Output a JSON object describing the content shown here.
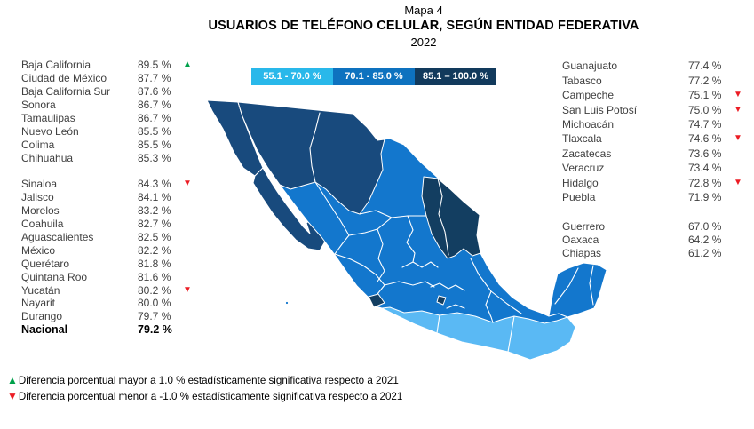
{
  "title": {
    "map_label": "Mapa 4",
    "main": "USUARIOS DE TELÉFONO CELULAR, SEGÚN ENTIDAD FEDERATIVA",
    "year": "2022"
  },
  "legend": {
    "items": [
      {
        "label": "55.1 - 70.0 %",
        "color": "#29b8ea"
      },
      {
        "label": "70.1 - 85.0 %",
        "color": "#0e72bf"
      },
      {
        "label": "85.1 – 100.0 %",
        "color": "#123a5c"
      }
    ]
  },
  "markers": {
    "up_color": "#00a14b",
    "down_color": "#ec1c24"
  },
  "map": {
    "colors": {
      "high_northwest": "#184a7d",
      "high_northeast": "#133e61",
      "mid": "#1377cd",
      "low": "#5ab9f4"
    }
  },
  "lists": {
    "left": {
      "groups": [
        [
          {
            "name": "Baja California",
            "value": "89.5 %",
            "marker": "up"
          },
          {
            "name": "Ciudad de México",
            "value": "87.7 %"
          },
          {
            "name": "Baja California Sur",
            "value": "87.6 %"
          },
          {
            "name": "Sonora",
            "value": "86.7 %"
          },
          {
            "name": "Tamaulipas",
            "value": "86.7 %"
          },
          {
            "name": "Nuevo León",
            "value": "85.5 %"
          },
          {
            "name": "Colima",
            "value": "85.5 %"
          },
          {
            "name": "Chihuahua",
            "value": "85.3 %"
          }
        ],
        [
          {
            "name": "Sinaloa",
            "value": "84.3 %",
            "marker": "down"
          },
          {
            "name": "Jalisco",
            "value": "84.1 %"
          },
          {
            "name": "Morelos",
            "value": "83.2 %"
          },
          {
            "name": "Coahuila",
            "value": "82.7 %"
          },
          {
            "name": "Aguascalientes",
            "value": "82.5 %"
          },
          {
            "name": "México",
            "value": "82.2 %"
          },
          {
            "name": "Querétaro",
            "value": "81.8 %"
          },
          {
            "name": "Quintana Roo",
            "value": "81.6 %"
          },
          {
            "name": "Yucatán",
            "value": "80.2 %",
            "marker": "down"
          },
          {
            "name": "Nayarit",
            "value": "80.0 %"
          },
          {
            "name": "Durango",
            "value": "79.7 %"
          },
          {
            "name": "Nacional",
            "value": "79.2 %",
            "bold": true
          }
        ]
      ]
    },
    "right": {
      "groups": [
        [
          {
            "name": "Guanajuato",
            "value": "77.4 %"
          },
          {
            "name": "Tabasco",
            "value": "77.2 %"
          },
          {
            "name": "Campeche",
            "value": "75.1 %",
            "marker": "down"
          },
          {
            "name": "San Luis Potosí",
            "value": "75.0 %",
            "marker": "down"
          },
          {
            "name": "Michoacán",
            "value": "74.7 %"
          },
          {
            "name": "Tlaxcala",
            "value": "74.6 %",
            "marker": "down"
          },
          {
            "name": "Zacatecas",
            "value": "73.6 %"
          },
          {
            "name": "Veracruz",
            "value": "73.4 %"
          },
          {
            "name": "Hidalgo",
            "value": "72.8 %",
            "marker": "down"
          },
          {
            "name": "Puebla",
            "value": "71.9 %"
          }
        ],
        [
          {
            "name": "Guerrero",
            "value": "67.0 %"
          },
          {
            "name": "Oaxaca",
            "value": "64.2 %"
          },
          {
            "name": "Chiapas",
            "value": "61.2 %"
          }
        ]
      ]
    }
  },
  "footnotes": [
    {
      "marker": "up",
      "text": "Diferencia porcentual mayor a 1.0 % estadísticamente significativa respecto a 2021"
    },
    {
      "marker": "down",
      "text": "Diferencia porcentual menor a -1.0 % estadísticamente significativa respecto a 2021"
    }
  ],
  "chart_data": {
    "type": "choropleth",
    "title": "Mapa 4",
    "subtitle": "USUARIOS DE TELÉFONO CELULAR, SEGÚN ENTIDAD FEDERATIVA",
    "year": "2022",
    "unit": "%",
    "bins": [
      {
        "label": "55.1 - 70.0 %",
        "color": "#29b8ea"
      },
      {
        "label": "70.1 - 85.0 %",
        "color": "#0e72bf"
      },
      {
        "label": "85.1 – 100.0 %",
        "color": "#123a5c"
      }
    ],
    "national": 79.2,
    "states": [
      {
        "name": "Baja California",
        "value": 89.5,
        "change_marker": "up"
      },
      {
        "name": "Ciudad de México",
        "value": 87.7
      },
      {
        "name": "Baja California Sur",
        "value": 87.6
      },
      {
        "name": "Sonora",
        "value": 86.7
      },
      {
        "name": "Tamaulipas",
        "value": 86.7
      },
      {
        "name": "Nuevo León",
        "value": 85.5
      },
      {
        "name": "Colima",
        "value": 85.5
      },
      {
        "name": "Chihuahua",
        "value": 85.3
      },
      {
        "name": "Sinaloa",
        "value": 84.3,
        "change_marker": "down"
      },
      {
        "name": "Jalisco",
        "value": 84.1
      },
      {
        "name": "Morelos",
        "value": 83.2
      },
      {
        "name": "Coahuila",
        "value": 82.7
      },
      {
        "name": "Aguascalientes",
        "value": 82.5
      },
      {
        "name": "México",
        "value": 82.2
      },
      {
        "name": "Querétaro",
        "value": 81.8
      },
      {
        "name": "Quintana Roo",
        "value": 81.6
      },
      {
        "name": "Yucatán",
        "value": 80.2,
        "change_marker": "down"
      },
      {
        "name": "Nayarit",
        "value": 80.0
      },
      {
        "name": "Durango",
        "value": 79.7
      },
      {
        "name": "Guanajuato",
        "value": 77.4
      },
      {
        "name": "Tabasco",
        "value": 77.2
      },
      {
        "name": "Campeche",
        "value": 75.1,
        "change_marker": "down"
      },
      {
        "name": "San Luis Potosí",
        "value": 75.0,
        "change_marker": "down"
      },
      {
        "name": "Michoacán",
        "value": 74.7
      },
      {
        "name": "Tlaxcala",
        "value": 74.6,
        "change_marker": "down"
      },
      {
        "name": "Zacatecas",
        "value": 73.6
      },
      {
        "name": "Veracruz",
        "value": 73.4
      },
      {
        "name": "Hidalgo",
        "value": 72.8,
        "change_marker": "down"
      },
      {
        "name": "Puebla",
        "value": 71.9
      },
      {
        "name": "Guerrero",
        "value": 67.0
      },
      {
        "name": "Oaxaca",
        "value": 64.2
      },
      {
        "name": "Chiapas",
        "value": 61.2
      }
    ],
    "marker_legend": {
      "up": "Diferencia porcentual mayor a 1.0 % estadísticamente significativa respecto a 2021",
      "down": "Diferencia porcentual menor a -1.0 % estadísticamente significativa respecto a 2021"
    },
    "legend_position": "top-center",
    "grid": false
  }
}
